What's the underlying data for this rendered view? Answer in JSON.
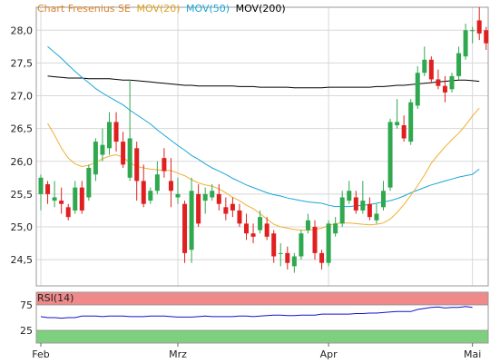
{
  "legend": {
    "title": "Chart Fresenius SE",
    "ma20": "MOV(20)",
    "ma50": "MOV(50)",
    "ma200": "MOV(200)"
  },
  "rsi_label": "RSI(14)",
  "colors": {
    "title": "#d9822b",
    "up": "#2fa84f",
    "down": "#e02020",
    "ma20": "#f0b030",
    "ma50": "#1aa6d6",
    "ma200": "#000000",
    "rsi_line": "#1515c8",
    "rsi_over": "#f08a8a",
    "rsi_under": "#7ed07e",
    "grid": "#d8d8d8"
  },
  "chart_data": {
    "type": "candlestick",
    "price_axis": {
      "ylim": [
        24.1,
        28.35
      ],
      "ticks": [
        "28,0",
        "27,5",
        "27,0",
        "26,5",
        "26,0",
        "25,5",
        "25,0",
        "24,5"
      ]
    },
    "x_ticks": [
      {
        "label": "Feb",
        "index": 0
      },
      {
        "label": "Mrz",
        "index": 20
      },
      {
        "label": "Apr",
        "index": 42
      },
      {
        "label": "Mai",
        "index": 63
      }
    ],
    "candles": [
      [
        25.5,
        25.75,
        25.8,
        25.25
      ],
      [
        25.65,
        25.5,
        25.7,
        25.35
      ],
      [
        25.4,
        25.45,
        25.7,
        25.3
      ],
      [
        25.4,
        25.35,
        25.6,
        25.2
      ],
      [
        25.3,
        25.15,
        25.35,
        25.1
      ],
      [
        25.25,
        25.6,
        25.7,
        25.2
      ],
      [
        25.6,
        25.25,
        25.7,
        25.2
      ],
      [
        25.45,
        25.9,
        25.95,
        25.4
      ],
      [
        25.8,
        26.3,
        26.35,
        25.7
      ],
      [
        26.1,
        26.25,
        26.5,
        26.0
      ],
      [
        26.2,
        26.6,
        26.75,
        26.1
      ],
      [
        26.6,
        26.3,
        26.75,
        26.15
      ],
      [
        26.3,
        25.95,
        26.45,
        25.9
      ],
      [
        25.75,
        26.35,
        27.25,
        25.7
      ],
      [
        26.2,
        25.7,
        26.3,
        25.4
      ],
      [
        25.7,
        25.35,
        25.95,
        25.3
      ],
      [
        25.4,
        25.55,
        25.6,
        25.35
      ],
      [
        25.55,
        25.8,
        26.0,
        25.5
      ],
      [
        26.05,
        25.85,
        26.2,
        25.75
      ],
      [
        25.7,
        25.55,
        26.05,
        25.3
      ],
      [
        25.45,
        25.5,
        25.75,
        25.35
      ],
      [
        25.35,
        24.6,
        25.4,
        24.45
      ],
      [
        24.65,
        25.55,
        25.75,
        24.45
      ],
      [
        25.5,
        25.05,
        25.65,
        25.0
      ],
      [
        25.4,
        25.5,
        25.6,
        25.2
      ],
      [
        25.45,
        25.55,
        25.65,
        25.4
      ],
      [
        25.5,
        25.35,
        25.65,
        25.25
      ],
      [
        25.3,
        25.2,
        25.45,
        25.1
      ],
      [
        25.35,
        25.25,
        25.45,
        25.15
      ],
      [
        25.25,
        25.05,
        25.35,
        25.0
      ],
      [
        25.05,
        24.9,
        25.2,
        24.8
      ],
      [
        24.9,
        24.85,
        25.05,
        24.75
      ],
      [
        24.95,
        25.15,
        25.25,
        24.9
      ],
      [
        25.05,
        24.85,
        25.15,
        24.8
      ],
      [
        24.9,
        24.55,
        24.95,
        24.45
      ],
      [
        24.6,
        24.6,
        24.75,
        24.4
      ],
      [
        24.6,
        24.45,
        24.7,
        24.35
      ],
      [
        24.4,
        24.55,
        24.6,
        24.3
      ],
      [
        24.55,
        24.9,
        24.95,
        24.5
      ],
      [
        24.95,
        25.1,
        25.2,
        24.9
      ],
      [
        25.0,
        24.6,
        25.1,
        24.5
      ],
      [
        24.6,
        24.45,
        24.65,
        24.35
      ],
      [
        24.45,
        25.05,
        25.1,
        24.4
      ],
      [
        24.9,
        25.05,
        25.15,
        24.85
      ],
      [
        25.05,
        25.45,
        25.55,
        25.0
      ],
      [
        25.4,
        25.55,
        25.7,
        25.35
      ],
      [
        25.45,
        25.25,
        25.55,
        25.2
      ],
      [
        25.25,
        25.4,
        25.7,
        25.2
      ],
      [
        25.35,
        25.15,
        25.45,
        25.1
      ],
      [
        25.1,
        25.2,
        25.35,
        25.05
      ],
      [
        25.3,
        25.55,
        25.7,
        25.25
      ],
      [
        25.6,
        26.6,
        26.65,
        25.55
      ],
      [
        26.55,
        26.6,
        26.95,
        26.5
      ],
      [
        26.55,
        26.35,
        26.7,
        26.3
      ],
      [
        26.3,
        26.9,
        26.95,
        26.25
      ],
      [
        26.85,
        27.35,
        27.45,
        26.8
      ],
      [
        27.35,
        27.55,
        27.75,
        27.3
      ],
      [
        27.55,
        27.25,
        27.6,
        27.2
      ],
      [
        27.25,
        27.15,
        27.4,
        27.1
      ],
      [
        27.15,
        27.05,
        27.3,
        26.9
      ],
      [
        27.1,
        27.3,
        27.35,
        27.05
      ],
      [
        27.3,
        27.65,
        27.75,
        27.25
      ],
      [
        27.6,
        28.0,
        28.1,
        27.55
      ],
      [
        28.0,
        28.0,
        28.05,
        27.8
      ],
      [
        28.15,
        27.95,
        28.35,
        27.85
      ],
      [
        28.0,
        27.8,
        28.05,
        27.7
      ]
    ],
    "ma20": [
      26.58,
      26.4,
      26.2,
      26.05,
      25.96,
      25.92,
      25.94,
      25.98,
      26.04,
      26.08,
      26.1,
      26.06,
      25.98,
      25.92,
      25.9,
      25.88,
      25.87,
      25.86,
      25.86,
      25.82,
      25.78,
      25.72,
      25.67,
      25.64,
      25.62,
      25.58,
      25.52,
      25.45,
      25.4,
      25.33,
      25.28,
      25.2,
      25.12,
      25.04,
      25.0,
      24.98,
      24.96,
      24.95,
      24.95,
      24.96,
      24.98,
      25.02,
      25.05,
      25.06,
      25.06,
      25.05,
      25.04,
      25.03,
      25.04,
      25.06,
      25.12,
      25.22,
      25.34,
      25.48,
      25.63,
      25.79,
      25.97,
      26.1,
      26.22,
      26.33,
      26.43,
      26.55,
      26.69,
      26.81
    ],
    "ma50": [
      27.75,
      27.66,
      27.57,
      27.47,
      27.37,
      27.28,
      27.2,
      27.11,
      27.04,
      26.98,
      26.92,
      26.86,
      26.78,
      26.71,
      26.64,
      26.57,
      26.48,
      26.4,
      26.32,
      26.24,
      26.17,
      26.09,
      26.03,
      25.96,
      25.9,
      25.85,
      25.8,
      25.74,
      25.69,
      25.64,
      25.6,
      25.56,
      25.52,
      25.49,
      25.47,
      25.44,
      25.42,
      25.4,
      25.38,
      25.37,
      25.36,
      25.33,
      25.31,
      25.31,
      25.31,
      25.32,
      25.33,
      25.34,
      25.36,
      25.38,
      25.4,
      25.43,
      25.47,
      25.52,
      25.56,
      25.6,
      25.64,
      25.67,
      25.7,
      25.73,
      25.76,
      25.78,
      25.8,
      25.88
    ],
    "ma200": [
      27.3,
      27.29,
      27.28,
      27.27,
      27.27,
      27.27,
      27.26,
      27.26,
      27.26,
      27.26,
      27.25,
      27.24,
      27.24,
      27.23,
      27.22,
      27.21,
      27.2,
      27.19,
      27.18,
      27.17,
      27.16,
      27.16,
      27.15,
      27.15,
      27.15,
      27.15,
      27.15,
      27.15,
      27.14,
      27.14,
      27.14,
      27.13,
      27.13,
      27.13,
      27.13,
      27.13,
      27.12,
      27.12,
      27.12,
      27.12,
      27.12,
      27.13,
      27.13,
      27.13,
      27.13,
      27.13,
      27.13,
      27.13,
      27.14,
      27.14,
      27.15,
      27.16,
      27.16,
      27.17,
      27.18,
      27.19,
      27.2,
      27.21,
      27.22,
      27.23,
      27.24,
      27.24,
      27.23,
      27.22
    ],
    "rsi": {
      "ylim": [
        0,
        100
      ],
      "ticks": [
        "75",
        "25"
      ],
      "overbought": 75,
      "oversold": 25,
      "values": [
        52,
        50,
        50,
        49,
        50,
        50,
        53,
        53,
        53,
        52,
        53,
        53,
        53,
        52,
        52,
        52,
        53,
        53,
        53,
        52,
        51,
        51,
        51,
        52,
        53,
        52,
        52,
        52,
        52,
        53,
        53,
        52,
        53,
        54,
        55,
        55,
        54,
        54,
        55,
        55,
        55,
        57,
        57,
        57,
        57,
        57,
        58,
        58,
        59,
        59,
        60,
        61,
        62,
        62,
        62,
        66,
        68,
        70,
        71,
        69,
        70,
        70,
        72,
        70
      ]
    }
  }
}
